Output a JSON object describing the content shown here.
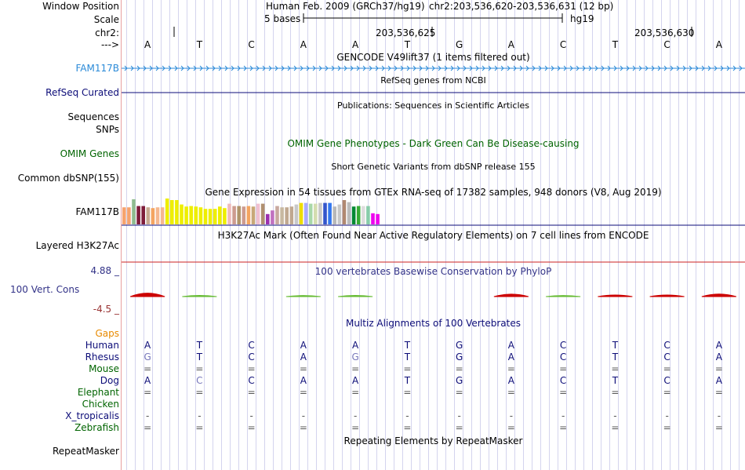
{
  "header": {
    "window_position_label": "Window Position",
    "scale_label": "Scale",
    "chrom_label": "chr2:",
    "arrow_label": "--->",
    "assembly": "Human Feb. 2009 (GRCh37/hg19)",
    "position": "chr2:203,536,620-203,536,631 (12 bp)",
    "scale_text": "5 bases",
    "scale_assembly": "hg19",
    "ruler_pos_1": "203,536,625",
    "ruler_pos_2": "203,536,630"
  },
  "sequence": [
    "A",
    "T",
    "C",
    "A",
    "A",
    "T",
    "G",
    "A",
    "C",
    "T",
    "C",
    "A"
  ],
  "tracks": {
    "gencode": {
      "label": "FAM117B",
      "title": "GENCODE V49lift37 (1 items filtered out)",
      "color": "#2a8ad8"
    },
    "refseq": {
      "label": "RefSeq Curated",
      "title": "RefSeq genes from NCBI",
      "color": "#0c0c78"
    },
    "publications": {
      "title": "Publications: Sequences in Scientific Articles"
    },
    "sequences": {
      "label": "Sequences"
    },
    "snps": {
      "label": "SNPs"
    },
    "omim": {
      "label": "OMIM Genes",
      "title": "OMIM Gene Phenotypes - Dark Green Can Be Disease-causing",
      "color": "#006400"
    },
    "dbsnp": {
      "label": "Common dbSNP(155)",
      "title": "Short Genetic Variants from dbSNP release 155"
    },
    "gtex": {
      "label": "FAM117B",
      "title": "Gene Expression in 54 tissues from GTEx RNA-seq of 17382 samples, 948 donors (V8, Aug 2019)",
      "values": [
        0.66,
        0.66,
        0.97,
        0.71,
        0.71,
        0.66,
        0.63,
        0.66,
        0.66,
        1.0,
        0.94,
        0.94,
        0.77,
        0.69,
        0.71,
        0.69,
        0.66,
        0.6,
        0.6,
        0.6,
        0.69,
        0.63,
        0.8,
        0.71,
        0.71,
        0.69,
        0.71,
        0.69,
        0.8,
        0.8,
        0.4,
        0.54,
        0.71,
        0.66,
        0.66,
        0.69,
        0.77,
        0.83,
        0.83,
        0.8,
        0.8,
        0.83,
        0.83,
        0.83,
        0.69,
        0.77,
        0.94,
        0.86,
        0.69,
        0.71,
        0.71,
        0.71,
        0.43,
        0.4
      ],
      "colors": [
        "#f6a36e",
        "#f6a36e",
        "#8fbc8f",
        "#7e1c3a",
        "#7e1c3a",
        "#c7a890",
        "#f4a460",
        "#f5b78f",
        "#f5b78f",
        "#eeee00",
        "#eeee00",
        "#eeee00",
        "#eeee00",
        "#eeee00",
        "#eeee00",
        "#eeee00",
        "#eeee00",
        "#eeee00",
        "#eeee00",
        "#eeee00",
        "#eeee00",
        "#eeee00",
        "#eebbbb",
        "#cd9b8f",
        "#b0946a",
        "#cd9b8f",
        "#f4a460",
        "#c8a878",
        "#f0c0d0",
        "#b09070",
        "#9b30b0",
        "#c070c0",
        "#c8a8a0",
        "#c8b8a0",
        "#c0a890",
        "#c0a890",
        "#c8c8c8",
        "#eedd00",
        "#aaaaff",
        "#a8d8a8",
        "#d4ddb0",
        "#c8c8c8",
        "#3355cc",
        "#3377ee",
        "#b8b8b8",
        "#c8c8c8",
        "#b08870",
        "#bbbbbb",
        "#008833",
        "#33aa33",
        "#dddddd",
        "#88ccaa",
        "#ee00ee",
        "#ee00ee"
      ]
    },
    "h3k27ac": {
      "label": "Layered H3K27Ac",
      "title": "H3K27Ac Mark (Often Found Near Active Regulatory Elements) on 7 cell lines from ENCODE"
    },
    "cons": {
      "label": "100 Vert. Cons",
      "max_label": "4.88 _",
      "min_label": "-4.5 _",
      "title": "100 vertebrates Basewise Conservation by PhyloP",
      "scores": [
        1.9,
        0.3,
        0.0,
        0.2,
        0.3,
        0.0,
        0.0,
        1.2,
        0.2,
        0.6,
        0.6,
        1.3
      ]
    },
    "gaps": {
      "label": "Gaps"
    },
    "multiz": {
      "title": "Multiz Alignments of 100 Vertebrates",
      "species": [
        {
          "name": "Human",
          "color": "#0c0c78",
          "seq": [
            "A",
            "T",
            "C",
            "A",
            "A",
            "T",
            "G",
            "A",
            "C",
            "T",
            "C",
            "A"
          ]
        },
        {
          "name": "Rhesus",
          "color": "#0c0c78",
          "seq": [
            "G",
            "T",
            "C",
            "A",
            "G",
            "T",
            "G",
            "A",
            "C",
            "T",
            "C",
            "A"
          ]
        },
        {
          "name": "Mouse",
          "color": "#006400",
          "seq": [
            "=",
            "=",
            "=",
            "=",
            "=",
            "=",
            "=",
            "=",
            "=",
            "=",
            "=",
            "="
          ]
        },
        {
          "name": "Dog",
          "color": "#0c0c78",
          "seq": [
            "A",
            "C",
            "C",
            "A",
            "A",
            "T",
            "G",
            "A",
            "C",
            "T",
            "C",
            "A"
          ]
        },
        {
          "name": "Elephant",
          "color": "#006400",
          "seq": [
            "=",
            "=",
            "=",
            "=",
            "=",
            "=",
            "=",
            "=",
            "=",
            "=",
            "=",
            "="
          ]
        },
        {
          "name": "Chicken",
          "color": "#006400",
          "seq": [
            "",
            "",
            "",
            "",
            "",
            "",
            "",
            "",
            "",
            "",
            "",
            ""
          ]
        },
        {
          "name": "X_tropicalis",
          "color": "#0c0c78",
          "seq": [
            "-",
            "-",
            "-",
            "-",
            "-",
            "-",
            "-",
            "-",
            "-",
            "-",
            "-",
            "-"
          ]
        },
        {
          "name": "Zebrafish",
          "color": "#006400",
          "seq": [
            "=",
            "=",
            "=",
            "=",
            "=",
            "=",
            "=",
            "=",
            "=",
            "=",
            "=",
            "="
          ]
        }
      ]
    },
    "repeatmasker": {
      "label": "RepeatMasker",
      "title": "Repeating Elements by RepeatMasker"
    }
  },
  "colors": {
    "grid": "#d4d4ee",
    "border": "#e8a0a0",
    "cons_pos": "#cc0000",
    "cons_label": "#333388",
    "cons_min": "#993333",
    "gaps_label": "#e88a00",
    "h3k27ac_line": "#cc2222"
  }
}
